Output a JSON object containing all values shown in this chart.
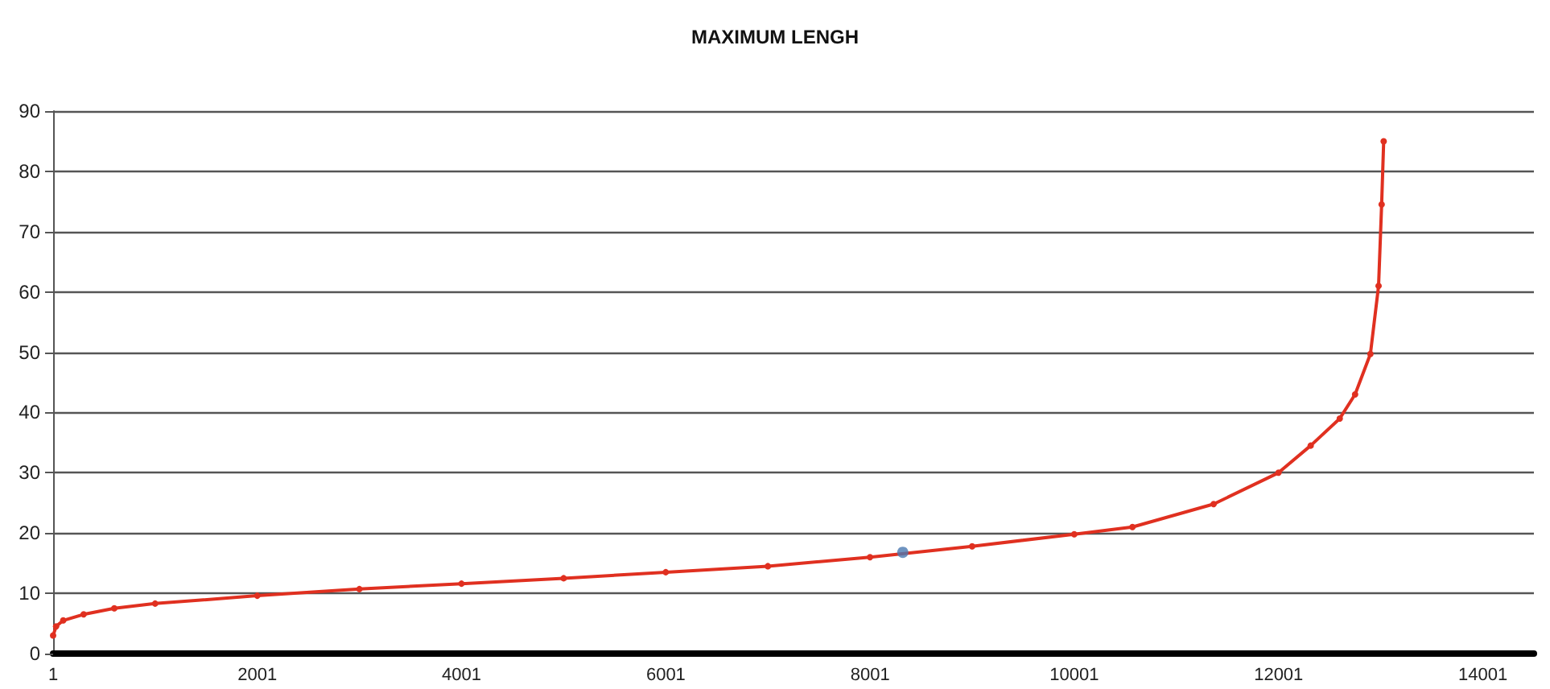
{
  "chart_data": {
    "type": "line",
    "title": "MAXIMUM LENGH",
    "xlim": [
      1,
      14501
    ],
    "xticks": [
      1,
      2001,
      4001,
      6001,
      8001,
      10001,
      12001,
      14001
    ],
    "ylim": [
      0,
      90
    ],
    "yticks": [
      0,
      10,
      20,
      30,
      40,
      50,
      60,
      70,
      80,
      90
    ],
    "grid": "y",
    "marker": "circle",
    "line_style": "solid",
    "series": [
      {
        "color": "#e03020",
        "x": [
          1,
          30,
          100,
          300,
          600,
          1000,
          2000,
          3000,
          4000,
          5000,
          6000,
          7000,
          8000,
          9000,
          10000,
          10570,
          11365,
          12000,
          12315,
          12600,
          12750,
          12900,
          12980,
          13010,
          13030
        ],
        "values": [
          3,
          4.5,
          5.5,
          6.5,
          7.5,
          8.3,
          9.6,
          10.7,
          11.6,
          12.5,
          13.5,
          14.5,
          16,
          17.8,
          19.8,
          21,
          24.8,
          30,
          34.5,
          39,
          43,
          49.7,
          61,
          74.5,
          85
        ]
      },
      {
        "type": "scatter",
        "color": "#4a78b0",
        "x": [
          8321
        ],
        "values": [
          16.8
        ]
      }
    ]
  }
}
